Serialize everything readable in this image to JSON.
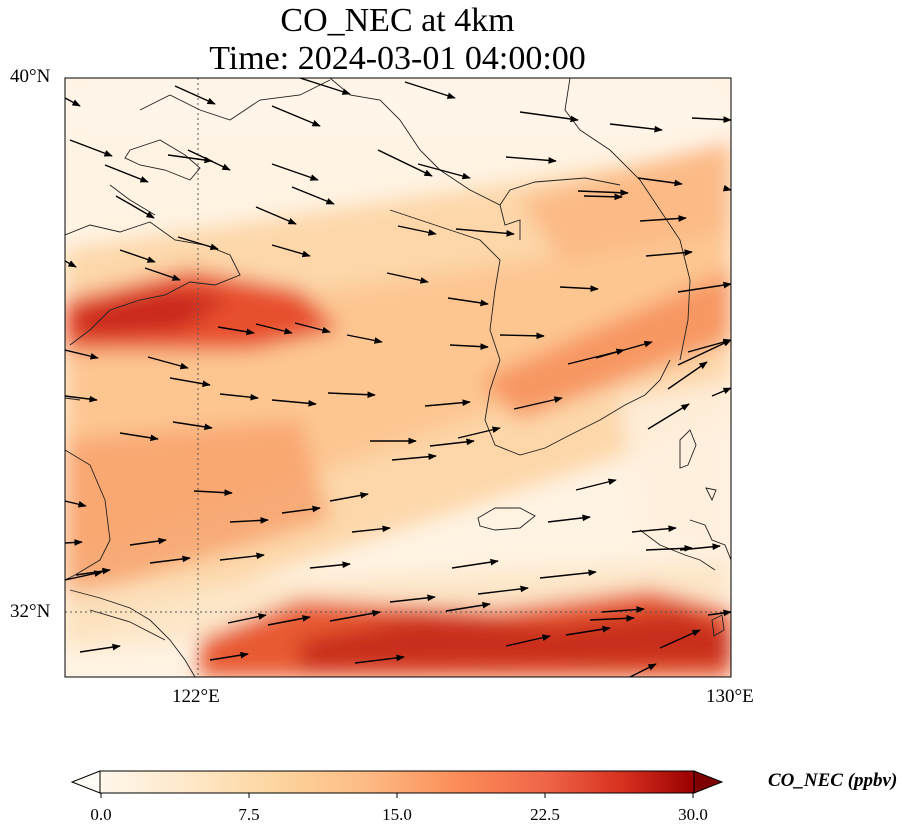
{
  "title": {
    "line1": "CO_NEC at 4km",
    "line2": "Time: 2024-03-01 04:00:00"
  },
  "axes": {
    "lat_labels": [
      "40°N",
      "32°N"
    ],
    "lon_labels": [
      "122°E",
      "130°E"
    ],
    "gridlines": "dotted at 32°N and 122°E"
  },
  "colorbar": {
    "title": "CO_NEC (ppbv)",
    "ticks": [
      "0.0",
      "7.5",
      "15.0",
      "22.5",
      "30.0"
    ],
    "colormap": "OrRd",
    "range": [
      0,
      30
    ],
    "extend": "both"
  },
  "map": {
    "variable": "CO_NEC",
    "units": "ppbv",
    "level": "4km",
    "extent": {
      "lon": [
        120,
        130
      ],
      "lat": [
        31,
        40
      ]
    },
    "features": [
      "coastlines",
      "wind vectors"
    ],
    "colors": {
      "low": "#fff7ec",
      "mid": "#fdbb84",
      "high": "#d7301f",
      "max": "#7f0000"
    }
  }
}
